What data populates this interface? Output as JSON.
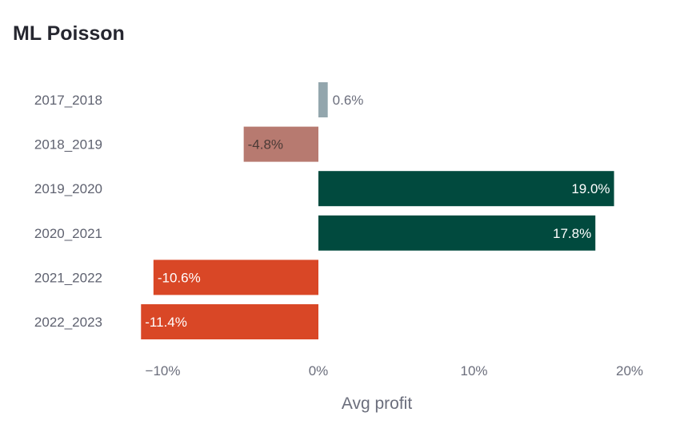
{
  "chart_data": {
    "type": "bar",
    "orientation": "horizontal",
    "title": "ML Poisson",
    "xlabel": "Avg profit",
    "ylabel": "",
    "categories": [
      "2017_2018",
      "2018_2019",
      "2019_2020",
      "2020_2021",
      "2021_2022",
      "2022_2023"
    ],
    "values": [
      0.6,
      -4.8,
      19.0,
      17.8,
      -10.6,
      -11.4
    ],
    "data_labels": [
      "0.6%",
      "-4.8%",
      "19.0%",
      "17.8%",
      "-10.6%",
      "-11.4%"
    ],
    "bar_colors": [
      "#93a6ad",
      "#b77a70",
      "#014a3e",
      "#014a3e",
      "#d94726",
      "#d94726"
    ],
    "data_label_colors": [
      "#6b6e7c",
      "#4a3a36",
      "#ffffff",
      "#ffffff",
      "#ffffff",
      "#ffffff"
    ],
    "x_ticks": [
      -10,
      0,
      10,
      20
    ],
    "x_tick_labels": [
      "−10%",
      "0%",
      "10%",
      "20%"
    ],
    "xlim": [
      -11.4,
      19.0
    ],
    "grid": false,
    "legend": "none"
  }
}
